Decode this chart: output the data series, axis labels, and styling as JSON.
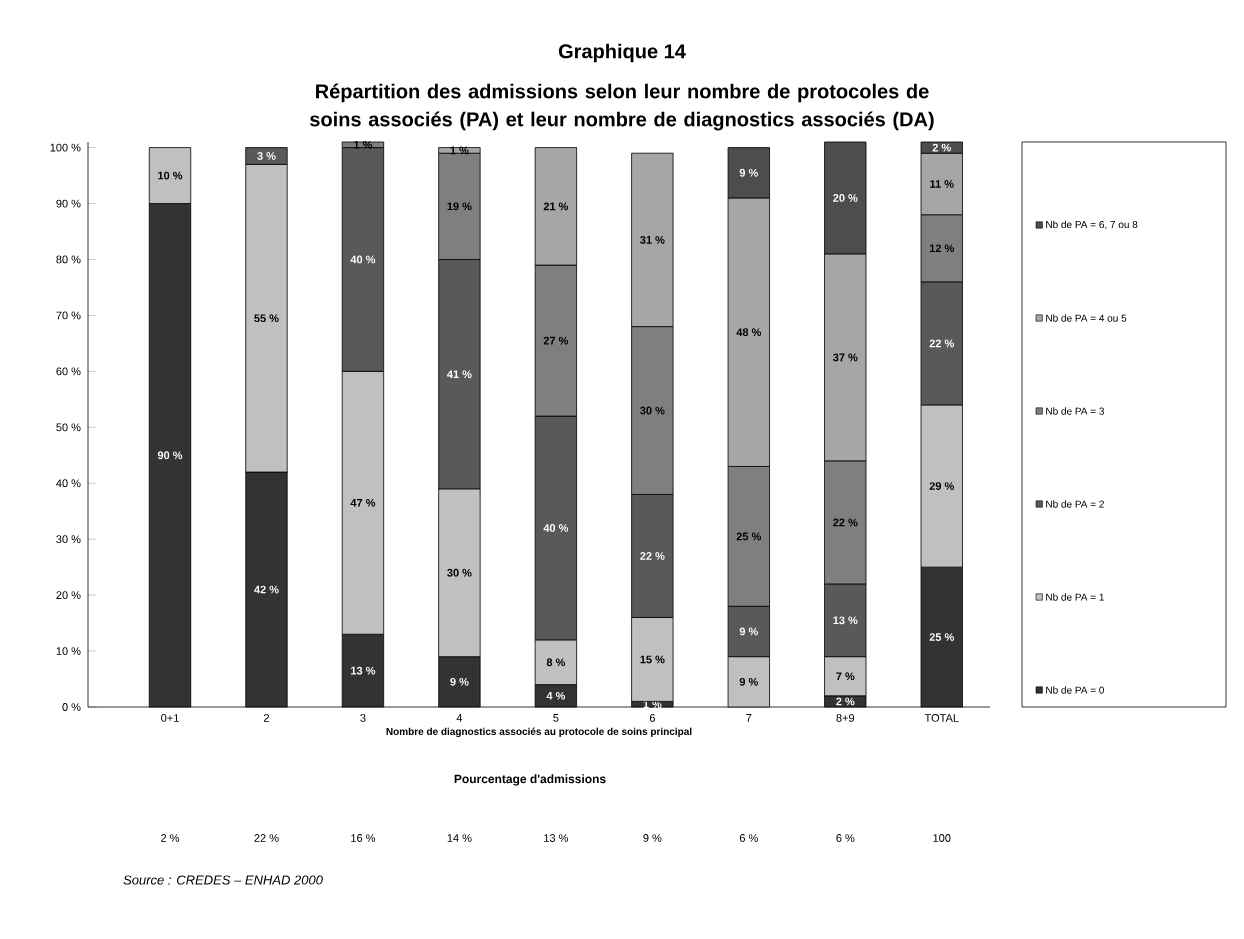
{
  "chart_data": {
    "type": "bar",
    "stacked": true,
    "legend": "right",
    "title": "Graphique 14",
    "subtitle": "Répartition des admissions selon leur nombre de protocoles de soins associés (PA) et leur nombre de diagnostics associés (DA)",
    "xlabel": "Nombre de diagnostics associés au protocole de soins principal",
    "categories": [
      "0+1",
      "2",
      "3",
      "4",
      "5",
      "6",
      "7",
      "8+9",
      "TOTAL"
    ],
    "ylim": [
      0,
      101
    ],
    "yticks": [
      {
        "value": 0,
        "label": "0 %"
      },
      {
        "value": 10,
        "label": "10 %"
      },
      {
        "value": 20,
        "label": "20 %"
      },
      {
        "value": 30,
        "label": "30 %"
      },
      {
        "value": 40,
        "label": "40 %"
      },
      {
        "value": 50,
        "label": "50 %"
      },
      {
        "value": 60,
        "label": "60 %"
      },
      {
        "value": 70,
        "label": "70 %"
      },
      {
        "value": 80,
        "label": "80 %"
      },
      {
        "value": 90,
        "label": "90 %"
      },
      {
        "value": 100,
        "label": "100 %"
      }
    ],
    "series": [
      {
        "name": "Nb de PA = 0",
        "color": "#333333",
        "values": [
          90,
          42,
          13,
          9,
          4,
          1,
          null,
          2,
          25
        ],
        "value_labels": [
          "90 %",
          "42 %",
          "13 %",
          "9 %",
          "4 %",
          "1 %",
          null,
          "2 %",
          "25 %"
        ]
      },
      {
        "name": "Nb de PA = 1",
        "color": "#c0c0c0",
        "values": [
          10,
          55,
          47,
          30,
          8,
          15,
          9,
          7,
          29
        ],
        "value_labels": [
          "10 %",
          "55 %",
          "47 %",
          "30 %",
          "8 %",
          "15 %",
          "9 %",
          "7 %",
          "29 %"
        ]
      },
      {
        "name": "Nb de PA = 2",
        "color": "#595959",
        "values": [
          null,
          3,
          40,
          41,
          40,
          22,
          9,
          13,
          22
        ],
        "value_labels": [
          null,
          "3 %",
          "40 %",
          "41 %",
          "40 %",
          "22 %",
          "9 %",
          "13 %",
          "22 %"
        ]
      },
      {
        "name": "Nb de PA = 3",
        "color": "#7f7f7f",
        "values": [
          null,
          null,
          1,
          19,
          27,
          30,
          25,
          22,
          12
        ],
        "value_labels": [
          null,
          null,
          "1 %",
          "19 %",
          "27 %",
          "30 %",
          "25 %",
          "22 %",
          "12 %"
        ]
      },
      {
        "name": "Nb de PA = 4 ou 5",
        "color": "#a6a6a6",
        "values": [
          null,
          null,
          null,
          1,
          21,
          31,
          48,
          37,
          11
        ],
        "value_labels": [
          null,
          null,
          null,
          "1 %",
          "21 %",
          "31 %",
          "48 %",
          "37 %",
          "11 %"
        ]
      },
      {
        "name": "Nb de PA = 6, 7 ou 8",
        "color": "#4d4d4d",
        "values": [
          null,
          null,
          null,
          null,
          null,
          null,
          9,
          20,
          2
        ],
        "value_labels": [
          null,
          null,
          null,
          null,
          null,
          null,
          "9 %",
          "20 %",
          "2 %"
        ]
      }
    ],
    "annotations": [
      "Pourcentage d'admissions",
      "2 %",
      "22 %",
      "16 %",
      "14 %",
      "13 %",
      "9 %",
      "6 %",
      "6 %",
      "100",
      "Source : CREDES – ENHAD 2000"
    ]
  }
}
